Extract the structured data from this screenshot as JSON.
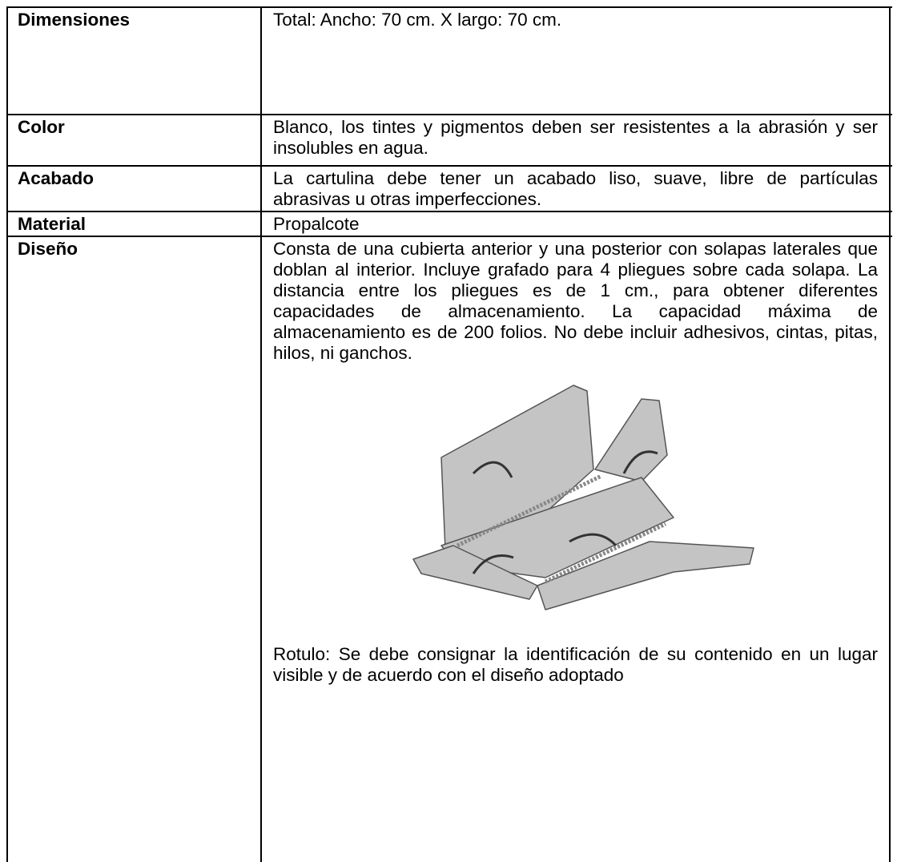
{
  "table": {
    "rows": [
      [
        "Dimensiones",
        "Total: Ancho: 70 cm. X largo: 70 cm."
      ],
      [
        "Color",
        "Blanco, los tintes y pigmentos deben ser resistentes a la abrasión y ser insolubles en agua."
      ],
      [
        "Acabado",
        "La cartulina debe tener un acabado liso, suave, libre de partículas abrasivas u otras imperfecciones."
      ],
      [
        "Material",
        "Propalcote"
      ],
      [
        "Diseño",
        "Consta de una cubierta anterior y una posterior con solapas laterales que doblan al interior. Incluye grafado para 4 pliegues sobre cada solapa. La distancia entre los pliegues es de 1 cm., para obtener diferentes capacidades de almacenamiento. La capacidad máxima de almacenamiento es de 200 folios. No debe incluir adhesivos, cintas, pitas, hilos, ni ganchos.",
        "Rotulo: Se debe consignar la identificación de su contenido en un lugar visible y de acuerdo con el diseño adoptado"
      ]
    ]
  }
}
